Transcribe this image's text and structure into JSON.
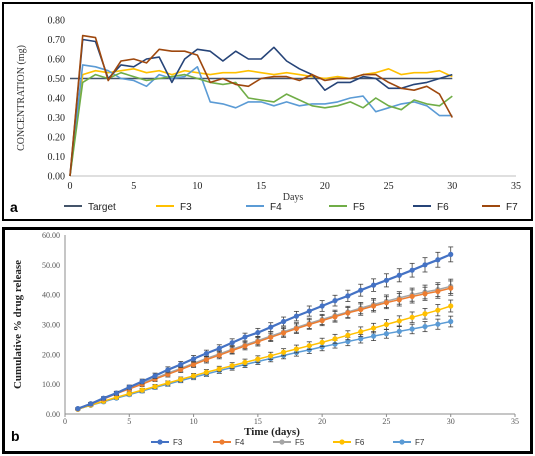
{
  "chart_data": [
    {
      "panel": "a",
      "type": "line",
      "title": "",
      "xlabel": "Days",
      "ylabel": "CONCENTRATION (mg)",
      "xlim": [
        0,
        35
      ],
      "ylim": [
        0,
        0.8
      ],
      "xticks": [
        "0",
        "5",
        "10",
        "15",
        "20",
        "25",
        "30",
        "35"
      ],
      "yticks": [
        "0.00",
        "0.10",
        "0.20",
        "0.30",
        "0.40",
        "0.50",
        "0.60",
        "0.70",
        "0.80"
      ],
      "grid": false,
      "legend_position": "bottom",
      "x": [
        0,
        1,
        2,
        3,
        4,
        5,
        6,
        7,
        8,
        9,
        10,
        11,
        12,
        13,
        14,
        15,
        16,
        17,
        18,
        19,
        20,
        21,
        22,
        23,
        24,
        25,
        26,
        27,
        28,
        29,
        30
      ],
      "series": [
        {
          "name": "Target",
          "color": "#44546A",
          "values": [
            0.5,
            0.5,
            0.5,
            0.5,
            0.5,
            0.5,
            0.5,
            0.5,
            0.5,
            0.5,
            0.5,
            0.5,
            0.5,
            0.5,
            0.5,
            0.5,
            0.5,
            0.5,
            0.5,
            0.5,
            0.5,
            0.5,
            0.5,
            0.5,
            0.5,
            0.5,
            0.5,
            0.5,
            0.5,
            0.5,
            0.5
          ]
        },
        {
          "name": "F3",
          "color": "#FFC000",
          "values": [
            0.0,
            0.52,
            0.54,
            0.53,
            0.54,
            0.55,
            0.53,
            0.54,
            0.52,
            0.54,
            0.53,
            0.52,
            0.53,
            0.53,
            0.54,
            0.53,
            0.52,
            0.53,
            0.52,
            0.51,
            0.5,
            0.51,
            0.5,
            0.52,
            0.53,
            0.55,
            0.52,
            0.53,
            0.53,
            0.54,
            0.51
          ]
        },
        {
          "name": "F4",
          "color": "#5B9BD5",
          "values": [
            0.0,
            0.57,
            0.56,
            0.54,
            0.5,
            0.49,
            0.46,
            0.52,
            0.5,
            0.51,
            0.56,
            0.38,
            0.37,
            0.35,
            0.38,
            0.38,
            0.36,
            0.38,
            0.36,
            0.37,
            0.37,
            0.38,
            0.4,
            0.41,
            0.33,
            0.35,
            0.37,
            0.38,
            0.36,
            0.31,
            0.31
          ]
        },
        {
          "name": "F5",
          "color": "#70AD47",
          "values": [
            0.0,
            0.48,
            0.52,
            0.5,
            0.53,
            0.51,
            0.49,
            0.5,
            0.51,
            0.52,
            0.5,
            0.48,
            0.47,
            0.48,
            0.4,
            0.39,
            0.38,
            0.42,
            0.39,
            0.36,
            0.35,
            0.36,
            0.38,
            0.35,
            0.4,
            0.36,
            0.34,
            0.39,
            0.37,
            0.36,
            0.41
          ]
        },
        {
          "name": "F6",
          "color": "#264478",
          "values": [
            0.0,
            0.7,
            0.69,
            0.5,
            0.57,
            0.56,
            0.6,
            0.61,
            0.48,
            0.6,
            0.65,
            0.64,
            0.59,
            0.64,
            0.6,
            0.6,
            0.66,
            0.59,
            0.55,
            0.52,
            0.44,
            0.48,
            0.48,
            0.51,
            0.5,
            0.45,
            0.45,
            0.47,
            0.48,
            0.5,
            0.52
          ]
        },
        {
          "name": "F7",
          "color": "#9E480E",
          "values": [
            0.0,
            0.72,
            0.71,
            0.49,
            0.59,
            0.6,
            0.58,
            0.65,
            0.64,
            0.64,
            0.62,
            0.48,
            0.5,
            0.47,
            0.46,
            0.5,
            0.51,
            0.51,
            0.49,
            0.52,
            0.49,
            0.5,
            0.5,
            0.52,
            0.52,
            0.48,
            0.45,
            0.44,
            0.46,
            0.42,
            0.3
          ]
        }
      ]
    },
    {
      "panel": "b",
      "type": "line",
      "title": "",
      "xlabel": "Time (days)",
      "ylabel": "Cumulative % drug release",
      "xlim": [
        0,
        35
      ],
      "ylim": [
        0,
        60
      ],
      "xticks": [
        "0",
        "5",
        "10",
        "15",
        "20",
        "25",
        "30",
        "35"
      ],
      "yticks": [
        "0.00",
        "10.00",
        "20.00",
        "30.00",
        "40.00",
        "50.00",
        "60.00"
      ],
      "grid": false,
      "legend_position": "bottom",
      "error_bars": true,
      "x": [
        1,
        2,
        3,
        4,
        5,
        6,
        7,
        8,
        9,
        10,
        11,
        12,
        13,
        14,
        15,
        16,
        17,
        18,
        19,
        20,
        21,
        22,
        23,
        24,
        25,
        26,
        27,
        28,
        29,
        30
      ],
      "series": [
        {
          "name": "F3",
          "color": "#4472C4",
          "values": [
            1.8,
            3.4,
            5.3,
            7.0,
            9.0,
            10.9,
            12.8,
            14.8,
            16.6,
            18.5,
            20.3,
            22.0,
            23.9,
            25.8,
            27.3,
            29.1,
            31.0,
            32.8,
            34.5,
            36.2,
            38.0,
            39.6,
            41.5,
            43.2,
            44.8,
            46.5,
            48.2,
            50.0,
            51.7,
            53.5
          ],
          "errors": [
            0.3,
            0.4,
            0.5,
            0.6,
            0.7,
            0.8,
            0.9,
            1.0,
            1.0,
            1.1,
            1.1,
            1.2,
            1.3,
            1.3,
            1.4,
            1.5,
            1.5,
            1.6,
            1.7,
            1.8,
            1.8,
            1.9,
            2.0,
            2.1,
            2.2,
            2.2,
            2.3,
            2.4,
            2.5,
            2.5
          ]
        },
        {
          "name": "F4",
          "color": "#ED7D31",
          "values": [
            1.7,
            3.3,
            5.0,
            6.8,
            8.4,
            10.0,
            11.7,
            13.3,
            14.9,
            16.6,
            18.2,
            19.7,
            21.3,
            22.8,
            24.2,
            25.7,
            27.2,
            28.6,
            30.0,
            31.3,
            32.6,
            33.9,
            35.0,
            36.2,
            37.3,
            38.3,
            39.4,
            40.3,
            41.1,
            42.2
          ],
          "errors": [
            0.3,
            0.4,
            0.5,
            0.6,
            0.7,
            0.8,
            0.8,
            0.9,
            1.0,
            1.0,
            1.1,
            1.2,
            1.2,
            1.3,
            1.4,
            1.4,
            1.5,
            1.6,
            1.6,
            1.7,
            1.8,
            1.8,
            1.9,
            2.0,
            2.0,
            2.1,
            2.2,
            2.2,
            2.3,
            2.4
          ]
        },
        {
          "name": "F5",
          "color": "#A5A5A5",
          "values": [
            1.8,
            3.5,
            5.2,
            7.0,
            8.7,
            10.4,
            12.0,
            13.7,
            15.3,
            17.0,
            18.6,
            20.1,
            21.7,
            23.2,
            24.6,
            26.1,
            27.6,
            29.0,
            30.4,
            31.7,
            33.0,
            34.2,
            35.5,
            36.7,
            37.8,
            38.9,
            40.0,
            40.9,
            41.7,
            42.8
          ],
          "errors": [
            0.3,
            0.4,
            0.5,
            0.6,
            0.7,
            0.8,
            0.9,
            0.9,
            1.0,
            1.1,
            1.1,
            1.2,
            1.3,
            1.3,
            1.4,
            1.5,
            1.5,
            1.6,
            1.7,
            1.7,
            1.8,
            1.9,
            1.9,
            2.0,
            2.1,
            2.1,
            2.2,
            2.3,
            2.3,
            2.4
          ]
        },
        {
          "name": "F6",
          "color": "#FFC000",
          "values": [
            1.6,
            3.0,
            4.3,
            5.6,
            6.8,
            8.0,
            9.2,
            10.4,
            11.6,
            12.8,
            14.0,
            15.1,
            16.2,
            17.3,
            18.4,
            19.5,
            20.7,
            21.8,
            22.9,
            24.0,
            25.2,
            26.4,
            27.6,
            28.8,
            30.0,
            31.2,
            32.4,
            33.6,
            34.8,
            36.2
          ],
          "errors": [
            0.3,
            0.3,
            0.4,
            0.5,
            0.5,
            0.6,
            0.7,
            0.7,
            0.8,
            0.8,
            0.9,
            0.9,
            1.0,
            1.1,
            1.1,
            1.2,
            1.2,
            1.3,
            1.3,
            1.4,
            1.5,
            1.5,
            1.6,
            1.6,
            1.7,
            1.7,
            1.8,
            1.8,
            1.9,
            2.0
          ]
        },
        {
          "name": "F7",
          "color": "#5B9BD5",
          "values": [
            1.6,
            2.9,
            4.1,
            5.3,
            6.5,
            7.7,
            8.9,
            10.0,
            11.2,
            12.3,
            13.4,
            14.5,
            15.6,
            16.6,
            17.6,
            18.6,
            19.6,
            20.6,
            21.5,
            22.5,
            23.4,
            24.3,
            25.2,
            26.1,
            26.9,
            27.7,
            28.5,
            29.3,
            30.1,
            31.0
          ],
          "errors": [
            0.3,
            0.3,
            0.4,
            0.4,
            0.5,
            0.6,
            0.6,
            0.7,
            0.7,
            0.8,
            0.8,
            0.9,
            0.9,
            1.0,
            1.0,
            1.1,
            1.1,
            1.2,
            1.2,
            1.3,
            1.3,
            1.4,
            1.4,
            1.5,
            1.5,
            1.6,
            1.6,
            1.7,
            1.7,
            1.8
          ]
        }
      ]
    }
  ],
  "panels": {
    "a_label": "a",
    "b_label": "b"
  }
}
